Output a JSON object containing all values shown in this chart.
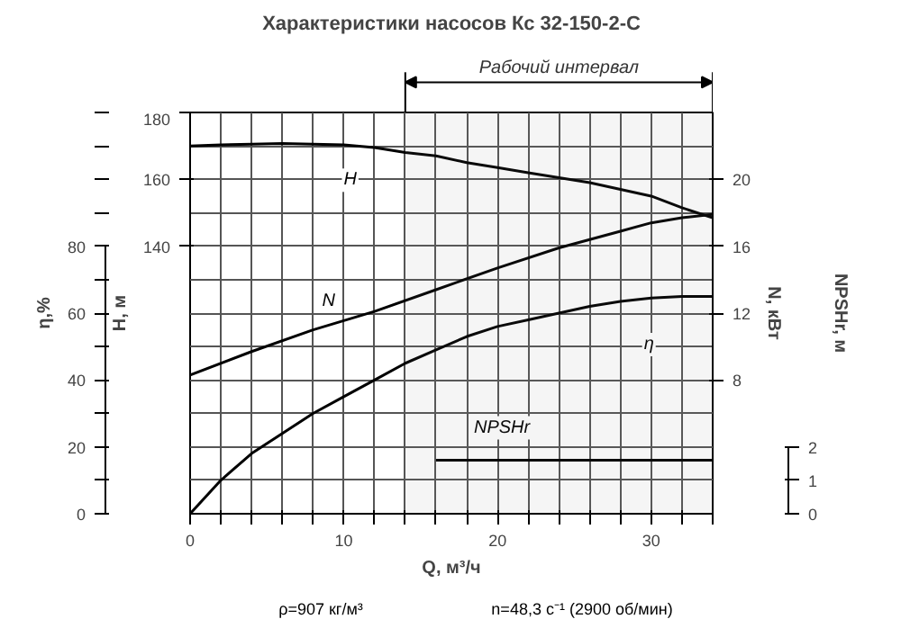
{
  "chart_data": [
    {
      "type": "line",
      "title": "Характеристики насосов Кс 32-150-2-С",
      "xlabel": "Q, м³/ч",
      "ylabel": "η,%",
      "y2label": "H, м",
      "y3label": "N, кВт",
      "xlim": [
        0,
        34
      ],
      "xticks": [
        0,
        {
          "value": 2,
          "label": null
        },
        {
          "value": 4,
          "label": null
        },
        {
          "value": 6,
          "label": null
        },
        {
          "value": 8,
          "label": null
        },
        10,
        {
          "value": 12,
          "label": null
        },
        {
          "value": 14,
          "label": null
        },
        {
          "value": 16,
          "label": null
        },
        {
          "value": 18,
          "label": null
        },
        20,
        {
          "value": 22,
          "label": null
        },
        {
          "value": 24,
          "label": null
        },
        {
          "value": 26,
          "label": null
        },
        {
          "value": 28,
          "label": null
        },
        30,
        {
          "value": 32,
          "label": null
        },
        {
          "value": 34,
          "label": null
        }
      ],
      "ylim": [
        0,
        120
      ],
      "yticks": [
        0,
        {
          "value": 10,
          "label": null
        },
        20,
        {
          "value": 30,
          "label": null
        },
        40,
        {
          "value": 50,
          "label": null
        },
        60,
        {
          "value": 70,
          "label": null
        },
        80,
        {
          "value": 90,
          "label": null
        },
        {
          "value": 100,
          "label": null
        },
        {
          "value": 110,
          "label": null
        },
        {
          "value": 120,
          "label": null
        }
      ],
      "y2lim": [
        60,
        180
      ],
      "y2ticks": [
        140,
        160,
        180
      ],
      "y3lim": [
        0,
        24
      ],
      "y3ticks": [
        8,
        12,
        16,
        20
      ],
      "grid": true,
      "line_style": "solid",
      "bands": [
        {
          "axis": "x",
          "from": 14,
          "to": 34,
          "label": "Рабочий интервал"
        }
      ],
      "annotations": [
        "ρ=907 кг/м³",
        "n=48,3 с⁻¹ (2900 об/мин)"
      ],
      "series": [
        {
          "name": "H",
          "color": "#000000",
          "axis": "y2",
          "x": [
            0,
            2,
            4,
            6,
            8,
            10,
            12,
            14,
            16,
            18,
            20,
            22,
            24,
            26,
            28,
            30,
            32,
            34
          ],
          "values": [
            170,
            170.3,
            170.5,
            170.7,
            170.5,
            170.3,
            169.5,
            168,
            167,
            165,
            163.5,
            162,
            160.5,
            159,
            157,
            155,
            151.5,
            148.5
          ]
        },
        {
          "name": "N",
          "color": "#000000",
          "axis": "y3",
          "x": [
            0,
            4,
            8,
            12,
            16,
            20,
            24,
            28,
            30,
            32,
            34
          ],
          "values": [
            8.3,
            9.7,
            11,
            12.1,
            13.4,
            14.7,
            15.9,
            16.9,
            17.4,
            17.7,
            17.9
          ]
        },
        {
          "name": "η",
          "color": "#000000",
          "x": [
            0,
            2,
            4,
            6,
            8,
            10,
            12,
            14,
            16,
            18,
            20,
            22,
            24,
            26,
            28,
            30,
            32,
            34
          ],
          "values": [
            0,
            10,
            18,
            24,
            30,
            35,
            40,
            45,
            49,
            53,
            56,
            58,
            60,
            62,
            63.5,
            64.5,
            65,
            65
          ]
        }
      ]
    },
    {
      "type": "line",
      "ylabel": "NPSHr, м",
      "xlim": [
        0,
        34
      ],
      "ylim": [
        0,
        12
      ],
      "yticks": [
        0,
        1,
        2
      ],
      "line_style": "solid",
      "series": [
        {
          "name": "NPSHr",
          "color": "#000000",
          "x": [
            16,
            34
          ],
          "values": [
            1.6,
            1.6
          ]
        }
      ]
    }
  ]
}
